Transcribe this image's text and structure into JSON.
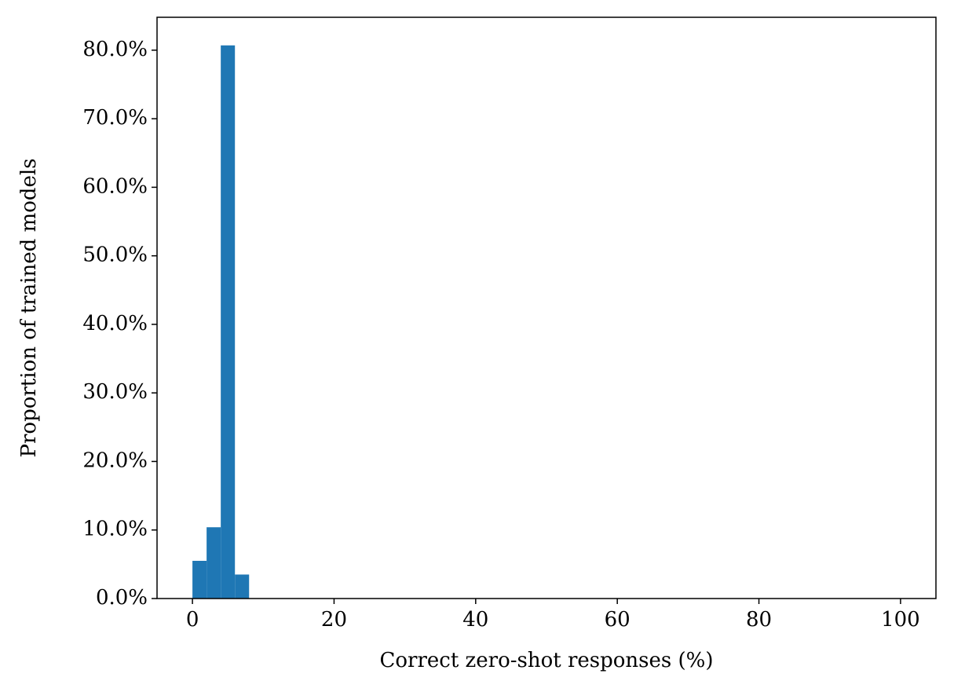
{
  "chart_data": {
    "type": "histogram",
    "x_label": "Correct zero-shot responses (%)",
    "y_label": "Proportion of trained models",
    "bins": [
      0,
      2,
      4,
      6,
      8
    ],
    "values": [
      5.5,
      10.4,
      80.7,
      3.5
    ],
    "color": "#1f77b4",
    "xlim": [
      -5,
      105
    ],
    "xticks": [
      0,
      20,
      40,
      60,
      80,
      100
    ],
    "ylim": [
      0,
      84.8
    ],
    "yticks": [
      {
        "value": 0,
        "label": "0.0%"
      },
      {
        "value": 10,
        "label": "10.0%"
      },
      {
        "value": 20,
        "label": "20.0%"
      },
      {
        "value": 30,
        "label": "30.0%"
      },
      {
        "value": 40,
        "label": "40.0%"
      },
      {
        "value": 50,
        "label": "50.0%"
      },
      {
        "value": 60,
        "label": "60.0%"
      },
      {
        "value": 70,
        "label": "70.0%"
      },
      {
        "value": 80,
        "label": "80.0%"
      }
    ]
  }
}
